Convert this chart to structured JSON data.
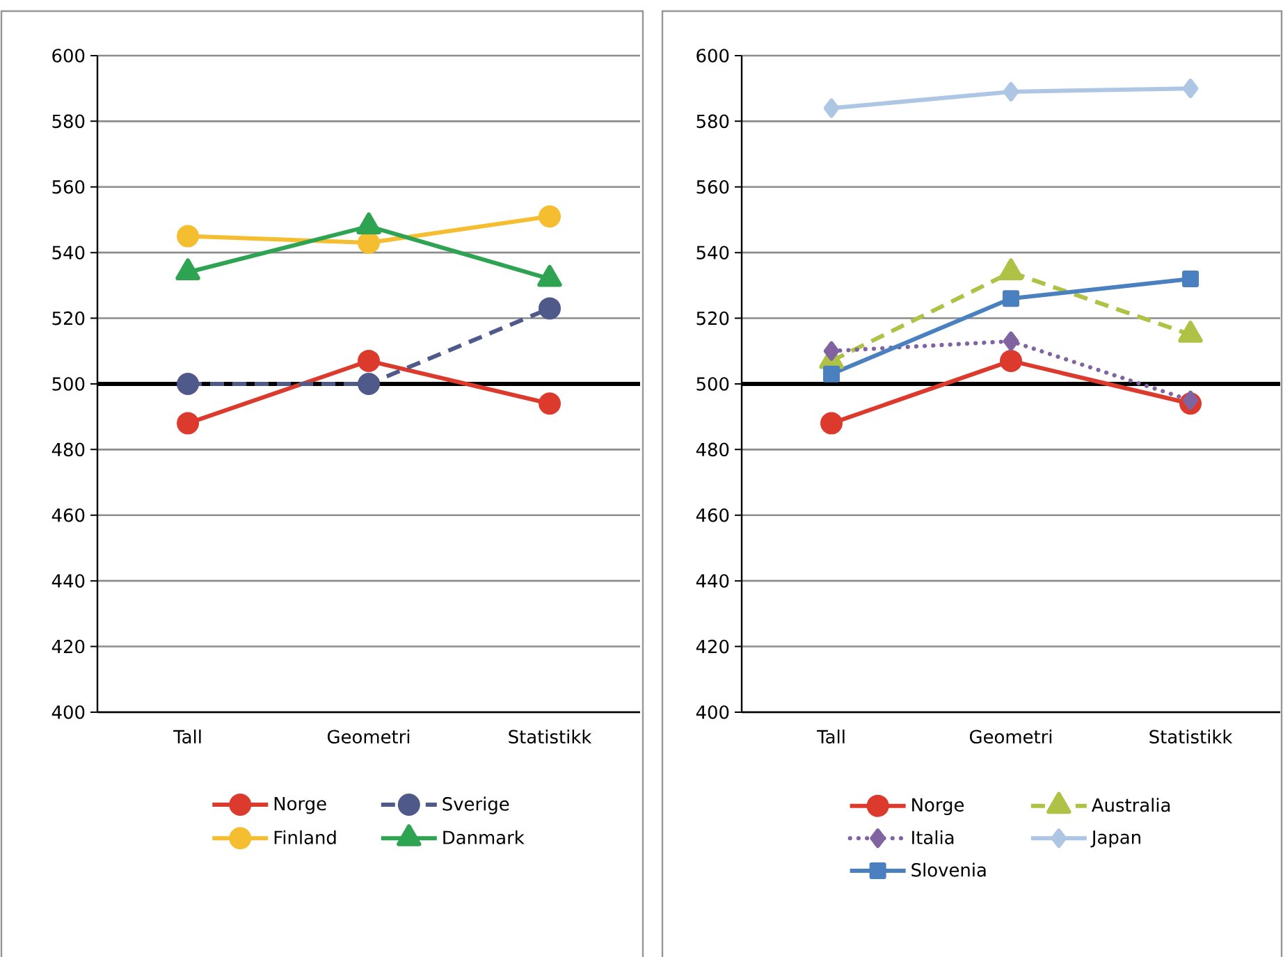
{
  "chart_data": [
    {
      "type": "line",
      "categories": [
        "Tall",
        "Geometri",
        "Statistikk"
      ],
      "ylim": [
        400,
        600
      ],
      "yticks": [
        400,
        420,
        440,
        460,
        480,
        500,
        520,
        540,
        560,
        580,
        600
      ],
      "grid": "y",
      "legend": "bottom",
      "ref_lines": [
        {
          "axis": "y",
          "value": 500,
          "color": "#000000"
        }
      ],
      "series": [
        {
          "name": "Norge",
          "color": "#dc3a2c",
          "values": [
            488,
            507,
            494
          ],
          "marker": "circle",
          "line_style": "solid"
        },
        {
          "name": "Sverige",
          "color": "#4f5a8a",
          "values": [
            500,
            500,
            523
          ],
          "marker": "circle",
          "line_style": "dashed"
        },
        {
          "name": "Finland",
          "color": "#f5bd30",
          "values": [
            545,
            543,
            551
          ],
          "marker": "circle",
          "line_style": "solid"
        },
        {
          "name": "Danmark",
          "color": "#2ea351",
          "values": [
            534,
            548,
            532
          ],
          "marker": "triangle",
          "line_style": "solid"
        }
      ]
    },
    {
      "type": "line",
      "categories": [
        "Tall",
        "Geometri",
        "Statistikk"
      ],
      "ylim": [
        400,
        600
      ],
      "yticks": [
        400,
        420,
        440,
        460,
        480,
        500,
        520,
        540,
        560,
        580,
        600
      ],
      "grid": "y",
      "legend": "bottom",
      "ref_lines": [
        {
          "axis": "y",
          "value": 500,
          "color": "#000000"
        }
      ],
      "series": [
        {
          "name": "Norge",
          "color": "#dc3a2c",
          "values": [
            488,
            507,
            494
          ],
          "marker": "circle",
          "line_style": "solid"
        },
        {
          "name": "Australia",
          "color": "#afc246",
          "values": [
            507,
            534,
            515
          ],
          "marker": "triangle",
          "line_style": "dashed"
        },
        {
          "name": "Italia",
          "color": "#8064a2",
          "values": [
            510,
            513,
            495
          ],
          "marker": "diamond",
          "line_style": "dotted"
        },
        {
          "name": "Japan",
          "color": "#adc6e4",
          "values": [
            584,
            589,
            590
          ],
          "marker": "diamond",
          "line_style": "solid"
        },
        {
          "name": "Slovenia",
          "color": "#4a80c0",
          "values": [
            503,
            526,
            532
          ],
          "marker": "square",
          "line_style": "solid"
        }
      ]
    }
  ]
}
